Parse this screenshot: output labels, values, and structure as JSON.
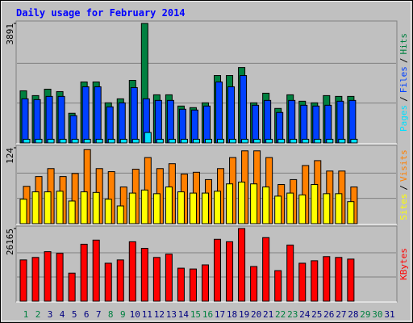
{
  "chart_data": {
    "type": "bar",
    "title": "Daily usage for February 2014",
    "categories": [
      "1",
      "2",
      "3",
      "4",
      "5",
      "6",
      "7",
      "8",
      "9",
      "10",
      "11",
      "12",
      "13",
      "14",
      "15",
      "16",
      "17",
      "18",
      "19",
      "20",
      "21",
      "22",
      "23",
      "24",
      "25",
      "26",
      "27",
      "28",
      "29",
      "30",
      "31"
    ],
    "label_colors": [
      "#008040",
      "#008040",
      "#000080",
      "#000080",
      "#000080",
      "#000080",
      "#000080",
      "#008040",
      "#008040",
      "#000080",
      "#000080",
      "#000080",
      "#000080",
      "#000080",
      "#008040",
      "#008040",
      "#000080",
      "#000080",
      "#000080",
      "#000080",
      "#000080",
      "#008040",
      "#008040",
      "#000080",
      "#000080",
      "#000080",
      "#000080",
      "#000080",
      "#008040",
      "#008040",
      "#000080"
    ],
    "legend_separator": "/",
    "panels": [
      {
        "ylim": [
          0,
          3891
        ],
        "yticks": [
          3891
        ],
        "series": [
          {
            "name": "Pages",
            "color": "#00e0ff",
            "values": [
              120,
              120,
              120,
              120,
              120,
              120,
              120,
              120,
              120,
              120,
              340,
              120,
              120,
              120,
              120,
              120,
              120,
              120,
              120,
              120,
              120,
              120,
              120,
              120,
              120,
              120,
              120,
              120,
              0,
              0,
              0
            ]
          },
          {
            "name": "Files",
            "color": "#0040ff",
            "values": [
              1436,
              1410,
              1515,
              1515,
              888,
              1828,
              1828,
              1175,
              1306,
              1802,
              1436,
              1384,
              1384,
              1097,
              1071,
              1201,
              1985,
              1828,
              2194,
              1227,
              1384,
              992,
              1384,
              1227,
              1201,
              1227,
              1358,
              1384,
              0,
              0,
              0
            ]
          },
          {
            "name": "Hits",
            "color": "#008040",
            "values": [
              1697,
              1541,
              1750,
              1671,
              966,
              1985,
              1985,
              1306,
              1436,
              2037,
              3891,
              1567,
              1567,
              1201,
              1149,
              1306,
              2194,
              2194,
              2455,
              1306,
              1619,
              1123,
              1567,
              1358,
              1306,
              1541,
              1515,
              1515,
              0,
              0,
              0
            ]
          }
        ]
      },
      {
        "ylim": [
          0,
          124
        ],
        "yticks": [
          124
        ],
        "series": [
          {
            "name": "Sites",
            "color": "#ffff00",
            "values": [
              40,
              52,
              52,
              53,
              37,
              52,
              51,
              40,
              29,
              50,
              55,
              49,
              60,
              52,
              50,
              50,
              53,
              65,
              68,
              65,
              60,
              45,
              50,
              47,
              64,
              49,
              49,
              36,
              0,
              0,
              0
            ]
          },
          {
            "name": "Visits",
            "color": "#ff8000",
            "values": [
              61,
              77,
              90,
              77,
              82,
              121,
              90,
              85,
              60,
              89,
              108,
              90,
              98,
              81,
              84,
              72,
              90,
              108,
              119,
              119,
              108,
              64,
              72,
              95,
              103,
              86,
              86,
              60,
              0,
              0,
              0
            ]
          }
        ]
      },
      {
        "ylim": [
          0,
          26165
        ],
        "yticks": [
          26165
        ],
        "series": [
          {
            "name": "KBytes",
            "color": "#ff0000",
            "values": [
              14867,
              15759,
              17840,
              17245,
              10109,
              20516,
              22003,
              13677,
              14867,
              21408,
              19030,
              15759,
              16948,
              11893,
              11596,
              13082,
              22300,
              21408,
              26165,
              12488,
              22895,
              11001,
              20218,
              13677,
              14570,
              16056,
              15759,
              15164,
              0,
              0,
              0
            ]
          }
        ]
      }
    ]
  }
}
